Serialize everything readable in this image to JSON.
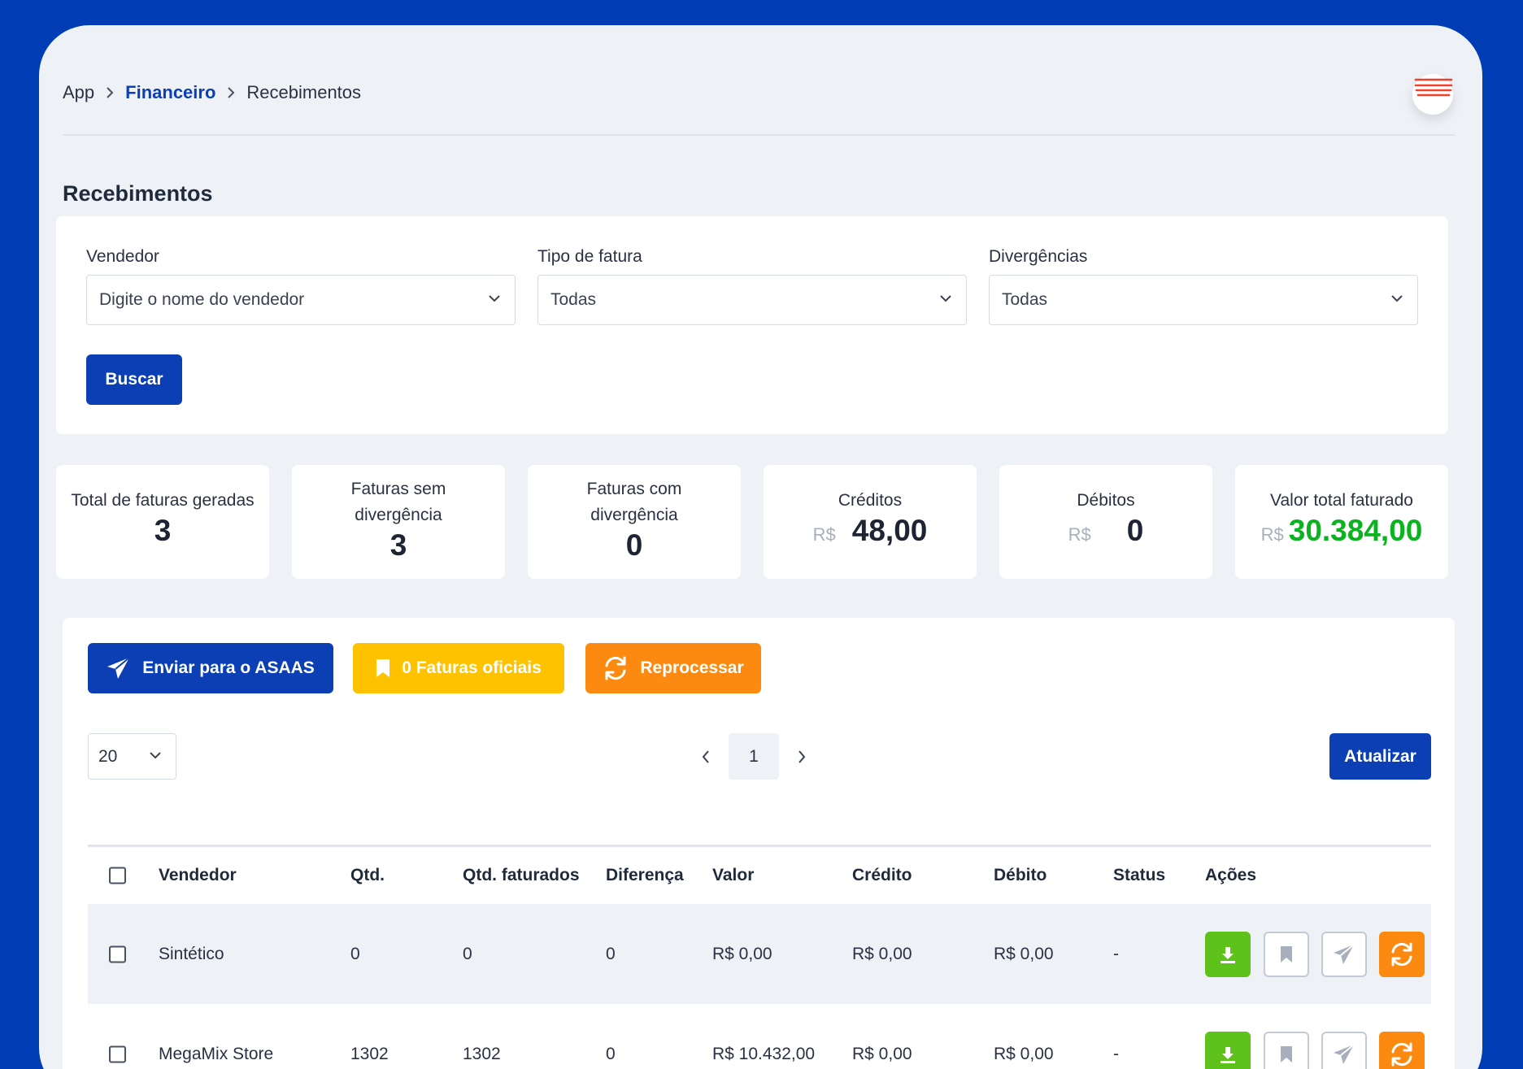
{
  "breadcrumb": {
    "app": "App",
    "financeiro": "Financeiro",
    "current": "Recebimentos"
  },
  "page_title": "Recebimentos",
  "filters": {
    "vendedor": {
      "label": "Vendedor",
      "placeholder": "Digite o nome do vendedor"
    },
    "tipo_fatura": {
      "label": "Tipo de fatura",
      "value": "Todas"
    },
    "divergencias": {
      "label": "Divergências",
      "value": "Todas"
    },
    "search_button": "Buscar"
  },
  "stats": {
    "total": {
      "label": "Total de faturas geradas",
      "value": "3"
    },
    "sem_div": {
      "label_line1": "Faturas sem",
      "label_line2": "divergência",
      "value": "3"
    },
    "com_div": {
      "label_line1": "Faturas com",
      "label_line2": "divergência",
      "value": "0"
    },
    "creditos": {
      "label": "Créditos",
      "currency": "R$",
      "value": "48,00"
    },
    "debitos": {
      "label": "Débitos",
      "currency": "R$",
      "value": "0"
    },
    "valor_total": {
      "label": "Valor total faturado",
      "currency": "R$",
      "value": "30.384,00"
    }
  },
  "actions": {
    "enviar": "Enviar para o ASAAS",
    "oficiais": "0 Faturas oficiais",
    "reprocessar": "Reprocessar"
  },
  "pagination": {
    "per_page": "20",
    "current_page": "1",
    "refresh_button": "Atualizar"
  },
  "table": {
    "columns": [
      "Vendedor",
      "Qtd.",
      "Qtd. faturados",
      "Diferença",
      "Valor",
      "Crédito",
      "Débito",
      "Status",
      "Ações"
    ],
    "rows": [
      {
        "vendedor": "Sintético",
        "qtd": "0",
        "qtd_faturados": "0",
        "diferenca": "0",
        "valor": "R$ 0,00",
        "credito": "R$ 0,00",
        "debito": "R$ 0,00",
        "status": "-"
      },
      {
        "vendedor": "MegaMix Store",
        "qtd": "1302",
        "qtd_faturados": "1302",
        "diferenca": "0",
        "valor": "R$ 10.432,00",
        "credito": "R$ 0,00",
        "debito": "R$ 0,00",
        "status": "-"
      }
    ]
  },
  "icons": {
    "menu": "menu-lines-icon",
    "chevron": "chevron-down-icon",
    "send": "paper-plane-icon",
    "bookmark": "bookmark-icon",
    "refresh": "refresh-icon",
    "download": "download-icon"
  },
  "colors": {
    "brand": "#003cb4",
    "primary_button": "#0b3fb3",
    "yellow": "#ffc200",
    "orange": "#fd8a10",
    "green": "#5ec21a",
    "total_green": "#0ab31f",
    "menu_red": "#f0412f"
  }
}
